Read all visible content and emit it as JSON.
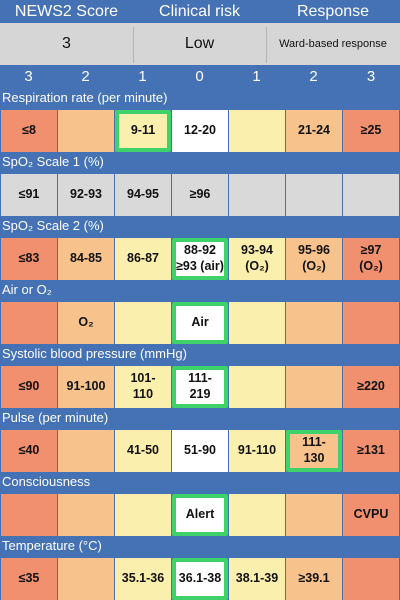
{
  "header": {
    "score_label": "NEWS2 Score",
    "risk_label": "Clinical risk",
    "response_label": "Response"
  },
  "summary": {
    "score": "3",
    "risk": "Low",
    "response": "Ward-based response"
  },
  "scale": [
    "3",
    "2",
    "1",
    "0",
    "1",
    "2",
    "3"
  ],
  "colors": {
    "score3": "#f0906f",
    "score2": "#f7c28c",
    "score1": "#fbefad",
    "score0": "#ffffff",
    "na": "#d9d9d9",
    "selected_border": "#3fd16a",
    "header": "#4472b4"
  },
  "rows": [
    {
      "title": "Respiration rate (per minute)",
      "cells": [
        {
          "text": "≤8",
          "color": "c3",
          "selected": false
        },
        {
          "text": "",
          "color": "c2",
          "selected": false
        },
        {
          "text": "9-11",
          "color": "c1",
          "selected": true
        },
        {
          "text": "12-20",
          "color": "c0",
          "selected": false
        },
        {
          "text": "",
          "color": "c1",
          "selected": false
        },
        {
          "text": "21-24",
          "color": "c2",
          "selected": false
        },
        {
          "text": "≥25",
          "color": "c3",
          "selected": false
        }
      ]
    },
    {
      "title": "SpO₂ Scale 1 (%)",
      "cells": [
        {
          "text": "≤91",
          "color": "cg",
          "selected": false
        },
        {
          "text": "92-93",
          "color": "cg",
          "selected": false
        },
        {
          "text": "94-95",
          "color": "cg",
          "selected": false
        },
        {
          "text": "≥96",
          "color": "cg",
          "selected": false
        },
        {
          "text": "",
          "color": "cg",
          "selected": false
        },
        {
          "text": "",
          "color": "cg",
          "selected": false
        },
        {
          "text": "",
          "color": "cg",
          "selected": false
        }
      ]
    },
    {
      "title": "SpO₂ Scale 2 (%)",
      "cells": [
        {
          "text": "≤83",
          "color": "c3",
          "selected": false
        },
        {
          "text": "84-85",
          "color": "c2",
          "selected": false
        },
        {
          "text": "86-87",
          "color": "c1",
          "selected": false
        },
        {
          "text": "88-92\n≥93 (air)",
          "color": "c0",
          "selected": true
        },
        {
          "text": "93-94\n(O₂)",
          "color": "c1",
          "selected": false
        },
        {
          "text": "95-96\n(O₂)",
          "color": "c2",
          "selected": false
        },
        {
          "text": "≥97\n(O₂)",
          "color": "c3",
          "selected": false
        }
      ]
    },
    {
      "title": "Air or O₂",
      "cells": [
        {
          "text": "",
          "color": "c3",
          "selected": false
        },
        {
          "text": "O₂",
          "color": "c2",
          "selected": false
        },
        {
          "text": "",
          "color": "c1",
          "selected": false
        },
        {
          "text": "Air",
          "color": "c0",
          "selected": true
        },
        {
          "text": "",
          "color": "c1",
          "selected": false
        },
        {
          "text": "",
          "color": "c2",
          "selected": false
        },
        {
          "text": "",
          "color": "c3",
          "selected": false
        }
      ]
    },
    {
      "title": "Systolic blood pressure (mmHg)",
      "cells": [
        {
          "text": "≤90",
          "color": "c3",
          "selected": false
        },
        {
          "text": "91-100",
          "color": "c2",
          "selected": false
        },
        {
          "text": "101-\n110",
          "color": "c1",
          "selected": false
        },
        {
          "text": "111-\n219",
          "color": "c0",
          "selected": true
        },
        {
          "text": "",
          "color": "c1",
          "selected": false
        },
        {
          "text": "",
          "color": "c2",
          "selected": false
        },
        {
          "text": "≥220",
          "color": "c3",
          "selected": false
        }
      ]
    },
    {
      "title": "Pulse (per minute)",
      "cells": [
        {
          "text": "≤40",
          "color": "c3",
          "selected": false
        },
        {
          "text": "",
          "color": "c2",
          "selected": false
        },
        {
          "text": "41-50",
          "color": "c1",
          "selected": false
        },
        {
          "text": "51-90",
          "color": "c0",
          "selected": false
        },
        {
          "text": "91-110",
          "color": "c1",
          "selected": false
        },
        {
          "text": "111-\n130",
          "color": "c2",
          "selected": true
        },
        {
          "text": "≥131",
          "color": "c3",
          "selected": false
        }
      ]
    },
    {
      "title": "Consciousness",
      "cells": [
        {
          "text": "",
          "color": "c3",
          "selected": false
        },
        {
          "text": "",
          "color": "c2",
          "selected": false
        },
        {
          "text": "",
          "color": "c1",
          "selected": false
        },
        {
          "text": "Alert",
          "color": "c0",
          "selected": true
        },
        {
          "text": "",
          "color": "c1",
          "selected": false
        },
        {
          "text": "",
          "color": "c2",
          "selected": false
        },
        {
          "text": "CVPU",
          "color": "c3",
          "selected": false
        }
      ]
    },
    {
      "title": "Temperature (°C)",
      "cells": [
        {
          "text": "≤35",
          "color": "c3",
          "selected": false
        },
        {
          "text": "",
          "color": "c2",
          "selected": false
        },
        {
          "text": "35.1-36",
          "color": "c1",
          "selected": false
        },
        {
          "text": "36.1-38",
          "color": "c0",
          "selected": true
        },
        {
          "text": "38.1-39",
          "color": "c1",
          "selected": false
        },
        {
          "text": "≥39.1",
          "color": "c2",
          "selected": false
        },
        {
          "text": "",
          "color": "c3",
          "selected": false
        }
      ]
    }
  ]
}
